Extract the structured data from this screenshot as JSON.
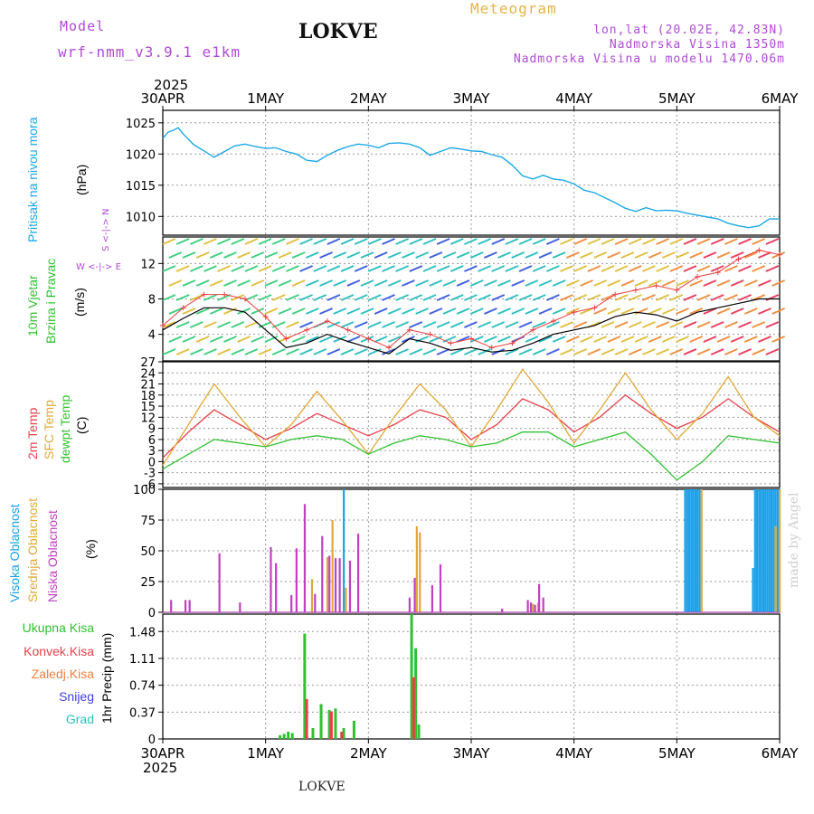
{
  "header": {
    "model_label": "Model",
    "model_name": "wrf-nmm_v3.9.1 e1km",
    "station": "LOKVE",
    "title": "Meteogram",
    "coords": "lon,lat (20.02E, 42.83N)",
    "altitude": "Nadmorska Visina 1350m",
    "model_altitude": "Nadmorska Visina u modelu 1470.06m"
  },
  "time_axis": {
    "year": "2025",
    "labels": [
      "30APR",
      "1MAY",
      "2MAY",
      "3MAY",
      "4MAY",
      "5MAY",
      "6MAY"
    ]
  },
  "footer": {
    "station": "LOKVE"
  },
  "credit": "made by Angel",
  "colors": {
    "pressure": "#1ca8e8",
    "temp2m": "#e8404a",
    "sfc": "#e0a838",
    "dewpt": "#30c030",
    "high": "#1ca0e8",
    "mid": "#e0a838",
    "low": "#c040c0",
    "total": "#30c030",
    "conv": "#e8404a",
    "frozen": "#f08040",
    "snow": "#4040e0",
    "hail": "#30c0c0"
  },
  "chart_data": [
    {
      "type": "line",
      "name": "pressure",
      "ylabel": "Pritisak na nivou mora",
      "unit": "(hPa)",
      "x_unit": "days since 30APR 00Z",
      "ylim": [
        1007,
        1027
      ],
      "yticks": [
        1010,
        1015,
        1020,
        1025
      ],
      "grid": true,
      "x": [
        0,
        0.05,
        0.1,
        0.15,
        0.2,
        0.3,
        0.4,
        0.5,
        0.6,
        0.7,
        0.8,
        0.9,
        1.0,
        1.1,
        1.2,
        1.3,
        1.4,
        1.5,
        1.6,
        1.7,
        1.8,
        1.9,
        2.0,
        2.1,
        2.2,
        2.3,
        2.4,
        2.5,
        2.6,
        2.7,
        2.8,
        2.9,
        3.0,
        3.1,
        3.2,
        3.3,
        3.4,
        3.5,
        3.6,
        3.7,
        3.8,
        3.9,
        4.0,
        4.1,
        4.2,
        4.3,
        4.4,
        4.5,
        4.6,
        4.7,
        4.8,
        4.9,
        5.0,
        5.1,
        5.2,
        5.3,
        5.4,
        5.5,
        5.6,
        5.7,
        5.8,
        5.9,
        6.0
      ],
      "values": [
        1022.5,
        1023.5,
        1023.8,
        1024.2,
        1023.2,
        1021.5,
        1020.5,
        1019.5,
        1020.4,
        1021.3,
        1021.6,
        1021.2,
        1020.9,
        1021.0,
        1020.4,
        1020.0,
        1019.0,
        1018.8,
        1019.8,
        1020.6,
        1021.2,
        1021.6,
        1021.4,
        1021.0,
        1021.7,
        1021.8,
        1021.6,
        1021.0,
        1019.8,
        1020.4,
        1021.0,
        1020.8,
        1020.5,
        1020.4,
        1019.9,
        1019.5,
        1018.2,
        1016.5,
        1016.0,
        1016.6,
        1016.0,
        1015.8,
        1015.2,
        1014.2,
        1013.8,
        1013.0,
        1012.2,
        1011.3,
        1010.8,
        1011.4,
        1010.9,
        1011.0,
        1010.9,
        1010.5,
        1010.2,
        1009.9,
        1009.6,
        1008.9,
        1008.5,
        1008.2,
        1008.5,
        1009.6,
        1009.6
      ]
    },
    {
      "type": "line",
      "name": "wind",
      "ylabel": "10m Vjetar Brzina i Pravac",
      "unit": "(m/s)",
      "compass": "W <-|-> E",
      "compass_ns": "S <-|-> N",
      "ylim": [
        1,
        15
      ],
      "yticks": [
        4,
        8,
        12
      ],
      "grid": true,
      "x": [
        0,
        0.2,
        0.4,
        0.6,
        0.8,
        1.0,
        1.2,
        1.4,
        1.6,
        1.8,
        2.0,
        2.2,
        2.4,
        2.6,
        2.8,
        3.0,
        3.2,
        3.4,
        3.6,
        3.8,
        4.0,
        4.2,
        4.4,
        4.6,
        4.8,
        5.0,
        5.2,
        5.4,
        5.6,
        5.8,
        6.0
      ],
      "values": [
        4.5,
        5.8,
        7.0,
        7.0,
        6.5,
        4.5,
        2.5,
        3.0,
        4.0,
        3.2,
        2.5,
        1.8,
        3.5,
        3.0,
        2.2,
        2.5,
        2.0,
        2.2,
        3.0,
        4.0,
        4.5,
        5.0,
        6.0,
        6.5,
        6.2,
        5.5,
        6.5,
        7.0,
        7.5,
        8.0,
        8.0
      ],
      "gust": [
        5.0,
        7.0,
        8.5,
        8.5,
        8.0,
        6.0,
        3.5,
        4.5,
        5.5,
        4.5,
        3.5,
        2.5,
        4.5,
        4.0,
        3.0,
        3.5,
        2.5,
        3.0,
        4.5,
        5.5,
        6.5,
        7.0,
        8.5,
        9.0,
        9.5,
        9.0,
        10.5,
        11.0,
        12.5,
        13.5,
        13.0
      ]
    },
    {
      "type": "line",
      "name": "temperature",
      "ylabel": "2m Temp",
      "ylabel2": "SFC Temp",
      "ylabel3": "dewpt Temp",
      "unit": "(C)",
      "ylim": [
        -7,
        27
      ],
      "yticks": [
        -6,
        -3,
        0,
        3,
        6,
        9,
        12,
        15,
        18,
        21,
        24,
        27
      ],
      "grid": true,
      "x": [
        0,
        0.25,
        0.5,
        0.75,
        1.0,
        1.25,
        1.5,
        1.75,
        2.0,
        2.25,
        2.5,
        2.75,
        3.0,
        3.25,
        3.5,
        3.75,
        4.0,
        4.25,
        4.5,
        4.75,
        5.0,
        5.25,
        5.5,
        5.75,
        6.0
      ],
      "series": [
        {
          "name": "2m Temp",
          "values": [
            1,
            8,
            14,
            10,
            6,
            9,
            13,
            10,
            7,
            10,
            14,
            12,
            6,
            10,
            17,
            14,
            8,
            12,
            18,
            13,
            9,
            12,
            17,
            12,
            8
          ]
        },
        {
          "name": "SFC Temp",
          "values": [
            -1,
            10,
            21,
            12,
            4,
            10,
            19,
            11,
            2,
            12,
            21,
            14,
            4,
            14,
            25,
            16,
            5,
            14,
            24,
            14,
            6,
            13,
            23,
            12,
            7
          ]
        },
        {
          "name": "dewpt Temp",
          "values": [
            -2,
            2,
            6,
            5,
            4,
            6,
            7,
            6,
            2,
            5,
            7,
            6,
            4,
            5,
            8,
            8,
            4,
            6,
            8,
            2,
            -5,
            0,
            7,
            6,
            5
          ]
        }
      ]
    },
    {
      "type": "bar",
      "name": "cloud cover",
      "ylabel": "Visoka Oblacnost",
      "ylabel2": "Srednja Oblacnost",
      "ylabel3": "Niska Oblacnost",
      "unit": "(%)",
      "ylim": [
        0,
        100
      ],
      "yticks": [
        0,
        25,
        50,
        75,
        100
      ],
      "grid": true,
      "series": [
        {
          "name": "Visoka Oblacnost",
          "x": [
            1.38,
            1.76,
            5.08,
            5.1,
            5.12,
            5.14,
            5.16,
            5.18,
            5.2,
            5.22,
            5.74,
            5.76,
            5.78,
            5.8,
            5.82,
            5.84,
            5.86,
            5.88,
            5.9,
            5.92,
            5.94,
            5.96,
            5.98
          ],
          "values": [
            8,
            100,
            100,
            100,
            100,
            100,
            100,
            100,
            100,
            100,
            36,
            100,
            100,
            100,
            100,
            100,
            100,
            100,
            100,
            100,
            100,
            100,
            100
          ]
        },
        {
          "name": "Srednja Oblacnost",
          "x": [
            1.45,
            1.6,
            1.65,
            1.78,
            2.47,
            2.5,
            3.6,
            3.65,
            5.24,
            5.96,
            6.0
          ],
          "values": [
            27,
            45,
            75,
            20,
            70,
            65,
            7,
            8,
            100,
            70,
            100
          ]
        },
        {
          "name": "Niska Oblacnost",
          "x": [
            0.08,
            0.22,
            0.26,
            0.55,
            0.75,
            1.05,
            1.1,
            1.25,
            1.3,
            1.38,
            1.48,
            1.55,
            1.62,
            1.68,
            1.72,
            1.82,
            1.9,
            2.4,
            2.45,
            2.62,
            2.7,
            3.3,
            3.55,
            3.58,
            3.62,
            3.66,
            3.7
          ],
          "values": [
            10,
            10,
            10,
            48,
            8,
            53,
            40,
            14,
            52,
            88,
            15,
            62,
            46,
            44,
            44,
            42,
            64,
            12,
            28,
            22,
            39,
            3,
            10,
            8,
            6,
            23,
            12
          ]
        }
      ]
    },
    {
      "type": "bar",
      "name": "precipitation",
      "ylabel": "1hr Precip (mm)",
      "legend": [
        "Ukupna Kisa",
        "Konvek.Kisa",
        "Zaledj.Kisa",
        "Snijeg",
        "Grad"
      ],
      "ylim": [
        0,
        1.72
      ],
      "yticks": [
        0,
        0.37,
        0.74,
        1.11,
        1.48
      ],
      "grid": true,
      "series": [
        {
          "name": "Ukupna Kisa",
          "x": [
            1.14,
            1.18,
            1.22,
            1.26,
            1.38,
            1.46,
            1.54,
            1.62,
            1.68,
            1.76,
            1.86,
            2.42,
            2.46,
            2.49
          ],
          "values": [
            0.05,
            0.07,
            0.1,
            0.08,
            1.45,
            0.15,
            0.48,
            0.4,
            0.42,
            0.15,
            0.25,
            1.72,
            1.25,
            0.2
          ]
        },
        {
          "name": "Konvek.Kisa",
          "x": [
            1.4,
            1.64,
            1.74,
            2.44
          ],
          "values": [
            0.55,
            0.38,
            0.1,
            0.85
          ]
        }
      ]
    }
  ]
}
